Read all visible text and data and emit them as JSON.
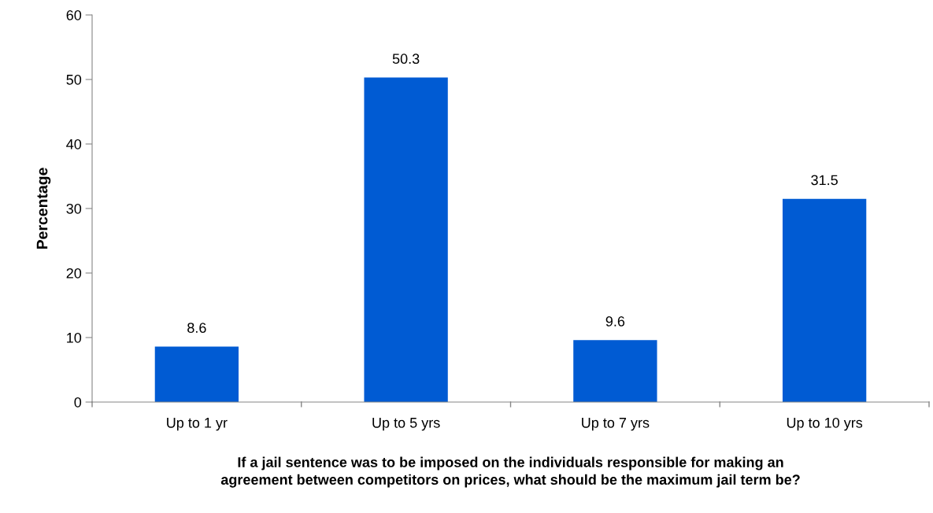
{
  "chart_data": {
    "type": "bar",
    "categories": [
      "Up to 1 yr",
      "Up to 5 yrs",
      "Up to 7 yrs",
      "Up to 10 yrs"
    ],
    "values": [
      8.6,
      50.3,
      9.6,
      31.5
    ],
    "color": "#005bd3",
    "ylabel": "Percentage",
    "xlabel": "If a jail sentence was to be imposed on the individuals responsible for making an\nagreement between competitors on prices, what should be the maximum jail term be?",
    "ylim": [
      0,
      60
    ],
    "yticks": [
      0,
      10,
      20,
      30,
      40,
      50,
      60
    ],
    "data_labels": true,
    "grid": false,
    "legend": false
  }
}
